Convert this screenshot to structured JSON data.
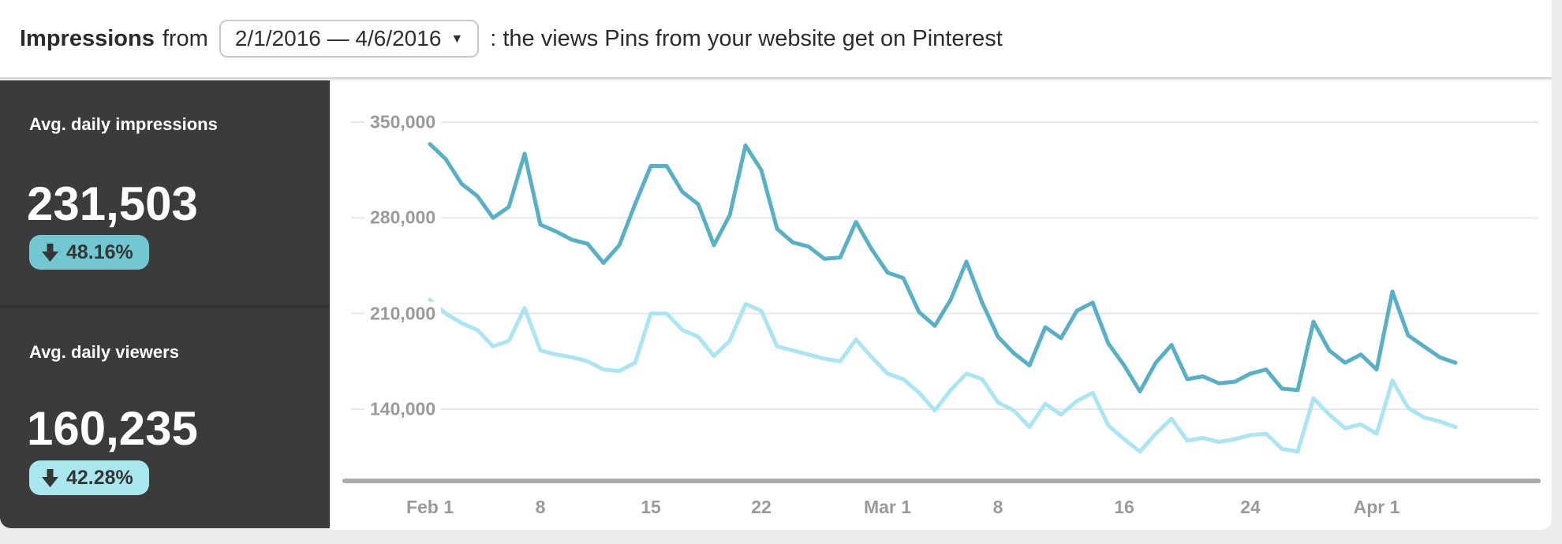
{
  "page": {
    "bg_color": "#ececec"
  },
  "header": {
    "title": "Impressions",
    "from_label": "from",
    "date_range_button": {
      "label": "2/1/2016 — 4/6/2016",
      "caret_icon": "▼"
    },
    "description": ": the views Pins from your website get on Pinterest"
  },
  "sidebar": {
    "bg_color": "#3b3b3b",
    "metrics": [
      {
        "label": "Avg. daily impressions",
        "value": "231,503",
        "change": "48.16%",
        "direction": "down",
        "badge_color": "#72c7d0"
      },
      {
        "label": "Avg. daily viewers",
        "value": "160,235",
        "change": "42.28%",
        "direction": "down",
        "badge_color": "#a9e7ef"
      }
    ]
  },
  "chart_data": {
    "type": "line",
    "title": "Impressions from 2/1/2016 — 4/6/2016",
    "xlabel": "",
    "ylabel": "",
    "ylim": [
      140000,
      350000
    ],
    "grid": true,
    "legend": false,
    "grid_color": "#e8e8e8",
    "axis_color": "#ababab",
    "label_color": "#9a9a9a",
    "x_dates": [
      "2/1",
      "2/2",
      "2/3",
      "2/4",
      "2/5",
      "2/6",
      "2/7",
      "2/8",
      "2/9",
      "2/10",
      "2/11",
      "2/12",
      "2/13",
      "2/14",
      "2/15",
      "2/16",
      "2/17",
      "2/18",
      "2/19",
      "2/20",
      "2/21",
      "2/22",
      "2/23",
      "2/24",
      "2/25",
      "2/26",
      "2/27",
      "2/28",
      "2/29",
      "3/1",
      "3/2",
      "3/3",
      "3/4",
      "3/5",
      "3/6",
      "3/7",
      "3/8",
      "3/9",
      "3/10",
      "3/11",
      "3/12",
      "3/13",
      "3/14",
      "3/15",
      "3/16",
      "3/17",
      "3/18",
      "3/19",
      "3/20",
      "3/21",
      "3/22",
      "3/23",
      "3/24",
      "3/25",
      "3/26",
      "3/27",
      "3/28",
      "3/29",
      "3/30",
      "3/31",
      "4/1",
      "4/2",
      "4/3",
      "4/4",
      "4/5",
      "4/6"
    ],
    "y_ticks": [
      {
        "label": "350,000",
        "value": 350000
      },
      {
        "label": "280,000",
        "value": 280000
      },
      {
        "label": "210,000",
        "value": 210000
      },
      {
        "label": "140,000",
        "value": 140000
      }
    ],
    "x_ticks": [
      {
        "label": "Feb 1",
        "day": 0
      },
      {
        "label": "8",
        "day": 7
      },
      {
        "label": "15",
        "day": 14
      },
      {
        "label": "22",
        "day": 21
      },
      {
        "label": "Mar 1",
        "day": 29
      },
      {
        "label": "8",
        "day": 36
      },
      {
        "label": "16",
        "day": 44
      },
      {
        "label": "24",
        "day": 52
      },
      {
        "label": "Apr 1",
        "day": 60
      }
    ],
    "series": [
      {
        "name": "Daily impressions",
        "color": "#57b0c6",
        "values": [
          334000,
          323000,
          305000,
          296000,
          280000,
          288000,
          327000,
          275000,
          270000,
          264000,
          261000,
          247000,
          260000,
          290000,
          318000,
          318000,
          299000,
          290000,
          260000,
          282000,
          333000,
          315000,
          272000,
          262000,
          259000,
          250000,
          251000,
          277000,
          257000,
          240000,
          236000,
          211000,
          201000,
          220000,
          248000,
          218000,
          193000,
          181000,
          172000,
          200000,
          192000,
          212000,
          218000,
          188000,
          172000,
          153000,
          174000,
          187000,
          162000,
          164000,
          159000,
          160000,
          166000,
          169000,
          155000,
          154000,
          204000,
          183000,
          174000,
          180000,
          169000,
          226000,
          194000,
          186000,
          178000,
          174000
        ]
      },
      {
        "name": "Daily viewers",
        "color": "#a9e5f2",
        "values": [
          220000,
          210000,
          203000,
          198000,
          186000,
          190000,
          214000,
          183000,
          180000,
          178000,
          175000,
          169000,
          168000,
          174000,
          210000,
          210000,
          198000,
          193000,
          179000,
          190000,
          217000,
          212000,
          186000,
          183000,
          180000,
          177000,
          175000,
          191000,
          178000,
          166000,
          162000,
          152000,
          139000,
          154000,
          166000,
          162000,
          145000,
          139000,
          127000,
          144000,
          136000,
          146000,
          152000,
          128000,
          118000,
          109000,
          122000,
          133000,
          117000,
          119000,
          116000,
          118000,
          121000,
          122000,
          111000,
          109000,
          148000,
          136000,
          126000,
          129000,
          122000,
          161000,
          141000,
          134000,
          131000,
          127000
        ]
      }
    ]
  }
}
